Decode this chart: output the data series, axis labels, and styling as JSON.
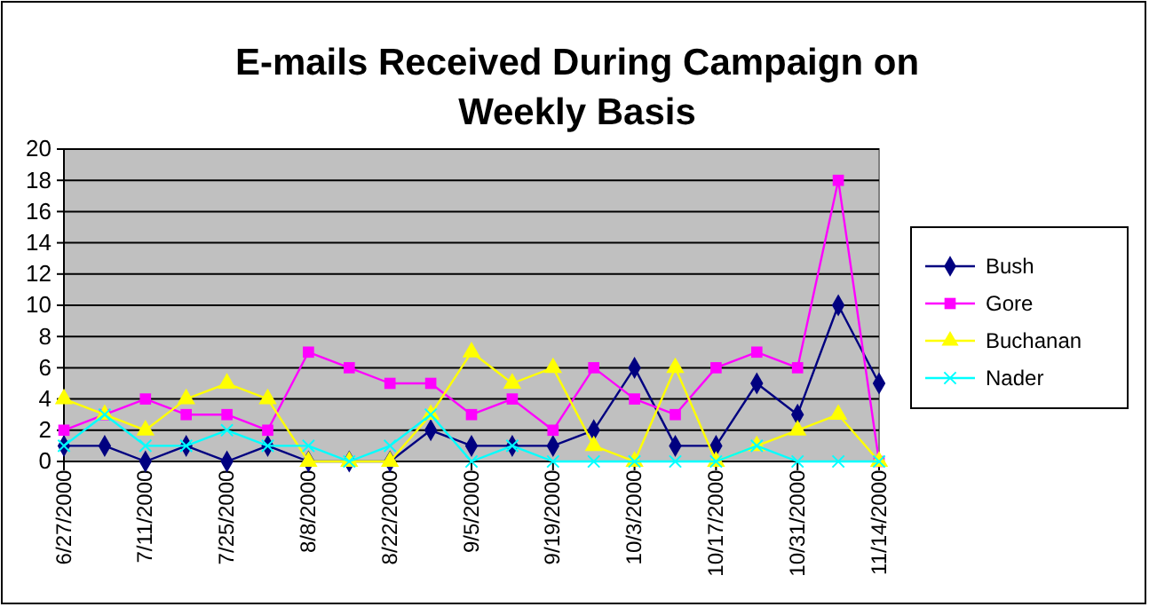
{
  "chart_data": {
    "type": "line",
    "title": "E-mails Received During Campaign on Weekly Basis",
    "categories": [
      "6/27/2000",
      null,
      "7/11/2000",
      null,
      "7/25/2000",
      null,
      "8/8/2000",
      null,
      "8/22/2000",
      null,
      "9/5/2000",
      null,
      "9/19/2000",
      null,
      "10/3/2000",
      null,
      "10/17/2000",
      null,
      "10/31/2000",
      null,
      "11/14/2000"
    ],
    "series": [
      {
        "name": "Bush",
        "color": "#000080",
        "marker": "diamond",
        "values": [
          1,
          1,
          0,
          1,
          0,
          1,
          0,
          0,
          0,
          2,
          1,
          1,
          1,
          2,
          6,
          1,
          1,
          5,
          3,
          10,
          5
        ]
      },
      {
        "name": "Gore",
        "color": "#ff00ff",
        "marker": "square",
        "values": [
          2,
          3,
          4,
          3,
          3,
          2,
          7,
          6,
          5,
          5,
          3,
          4,
          2,
          6,
          4,
          3,
          6,
          7,
          6,
          18,
          0
        ]
      },
      {
        "name": "Buchanan",
        "color": "#ffff00",
        "marker": "triangle",
        "values": [
          4,
          3,
          2,
          4,
          5,
          4,
          0,
          0,
          0,
          3,
          7,
          5,
          6,
          1,
          0,
          6,
          0,
          1,
          2,
          3,
          0
        ]
      },
      {
        "name": "Nader",
        "color": "#00ffff",
        "marker": "cross",
        "values": [
          1,
          3,
          1,
          1,
          2,
          1,
          1,
          0,
          1,
          3,
          0,
          1,
          0,
          0,
          0,
          0,
          0,
          1,
          0,
          0,
          0
        ]
      }
    ],
    "ylim": [
      0,
      20
    ],
    "yticks": [
      0,
      2,
      4,
      6,
      8,
      10,
      12,
      14,
      16,
      18,
      20
    ],
    "grid": "y",
    "legend": "right"
  }
}
